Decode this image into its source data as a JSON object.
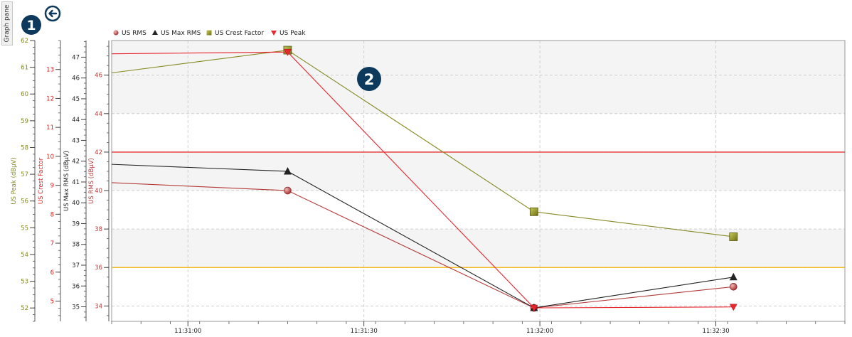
{
  "graph_pane_label": "Graph pane",
  "badges": {
    "one": "1",
    "two": "2"
  },
  "colors": {
    "rms": "#b53a3a",
    "max_rms": "#222222",
    "crest": "#868a20",
    "peak": "#e8262e",
    "crest_axis": "#e02020",
    "limit_red": "#e03030",
    "limit_orange": "#f4b400",
    "badge": "#0d3a5c"
  },
  "icons": {
    "back": "back-arrow-icon"
  },
  "chart_data": {
    "type": "line",
    "x": [
      "11:30:44",
      "11:31:17",
      "11:31:59",
      "11:32:33"
    ],
    "x_ticks": [
      "11:31:00",
      "11:31:30",
      "11:32:00",
      "11:32:30"
    ],
    "xlim": [
      "11:30:47",
      "11:32:52"
    ],
    "series": [
      {
        "name": "US RMS",
        "marker": "circle",
        "axis": "rms",
        "values": [
          40.45,
          40.0,
          33.9,
          35.0
        ]
      },
      {
        "name": "US Max RMS",
        "marker": "triangle-up",
        "axis": "max_rms",
        "values": [
          41.4,
          41.0,
          33.9,
          35.5
        ]
      },
      {
        "name": "US Crest Factor",
        "marker": "square",
        "axis": "crest",
        "values": [
          46.0,
          47.3,
          38.9,
          37.6
        ]
      },
      {
        "name": "US Peak",
        "marker": "triangle-down",
        "axis": "peak",
        "values": [
          47.1,
          47.2,
          33.9,
          33.95
        ]
      }
    ],
    "axes": [
      {
        "id": "peak",
        "label": "US Peak (dBµV)",
        "range": [
          51.5,
          62
        ],
        "ticks": [
          52,
          53,
          54,
          55,
          56,
          57,
          58,
          59,
          60,
          61,
          62
        ]
      },
      {
        "id": "crest",
        "label": "US Crest Factor",
        "range": [
          4.3,
          14
        ],
        "ticks": [
          5,
          6,
          7,
          8,
          9,
          10,
          11,
          12,
          13
        ]
      },
      {
        "id": "max_rms",
        "label": "US Max RMS (dBµV)",
        "range": [
          34.3,
          47.8
        ],
        "ticks": [
          35,
          36,
          37,
          38,
          39,
          40,
          41,
          42,
          43,
          44,
          45,
          46,
          47
        ]
      },
      {
        "id": "rms",
        "label": "US RMS (dBµV)",
        "range": [
          33.2,
          47.8
        ],
        "ticks": [
          34,
          36,
          38,
          40,
          42,
          44,
          46
        ]
      }
    ],
    "limit_lines": [
      {
        "value": 42,
        "color": "red"
      },
      {
        "value": 36,
        "color": "orange"
      }
    ],
    "grid": true,
    "legend_position": "top-left"
  }
}
